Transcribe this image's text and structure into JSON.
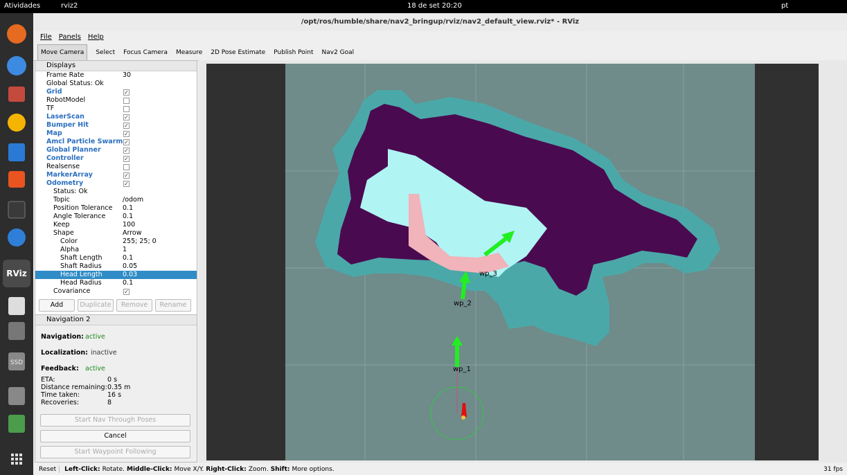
{
  "topbar": {
    "activities": "Atividades",
    "app": "rviz2",
    "clock": "18 de set 20:20",
    "lang": "pt"
  },
  "window": {
    "title": "/opt/ros/humble/share/nav2_bringup/rviz/nav2_default_view.rviz* - RViz"
  },
  "menu": [
    "File",
    "Panels",
    "Help"
  ],
  "toolbar": [
    "Move Camera",
    "Select",
    "Focus Camera",
    "Measure",
    "2D Pose Estimate",
    "Publish Point",
    "Nav2 Goal"
  ],
  "dock": {
    "rviz": "RViz",
    "ssd": "SSD"
  },
  "displays": {
    "title": "Displays",
    "rows": [
      {
        "name": "Frame Rate",
        "value": "30",
        "level": 1
      },
      {
        "name": "Global Status: Ok",
        "level": 1
      },
      {
        "name": "Grid",
        "check": true,
        "level": 1,
        "highlight": true
      },
      {
        "name": "RobotModel",
        "check": false,
        "level": 1
      },
      {
        "name": "TF",
        "check": false,
        "level": 1
      },
      {
        "name": "LaserScan",
        "check": true,
        "level": 1,
        "highlight": true
      },
      {
        "name": "Bumper Hit",
        "check": true,
        "level": 1,
        "highlight": true
      },
      {
        "name": "Map",
        "check": true,
        "level": 1,
        "highlight": true
      },
      {
        "name": "Amcl Particle Swarm",
        "check": true,
        "level": 1,
        "highlight": true
      },
      {
        "name": "Global Planner",
        "check": true,
        "level": 1,
        "highlight": true
      },
      {
        "name": "Controller",
        "check": true,
        "level": 1,
        "highlight": true
      },
      {
        "name": "Realsense",
        "check": false,
        "level": 1
      },
      {
        "name": "MarkerArray",
        "check": true,
        "level": 1,
        "highlight": true
      },
      {
        "name": "Odometry",
        "check": true,
        "level": 1,
        "highlight": true
      },
      {
        "name": "Status: Ok",
        "level": 2
      },
      {
        "name": "Topic",
        "value": "/odom",
        "level": 2
      },
      {
        "name": "Position Tolerance",
        "value": "0.1",
        "level": 2
      },
      {
        "name": "Angle Tolerance",
        "value": "0.1",
        "level": 2
      },
      {
        "name": "Keep",
        "value": "100",
        "level": 2
      },
      {
        "name": "Shape",
        "value": "Arrow",
        "level": 2
      },
      {
        "name": "Color",
        "value": "255; 25; 0",
        "level": 3
      },
      {
        "name": "Alpha",
        "value": "1",
        "level": 3
      },
      {
        "name": "Shaft Length",
        "value": "0.1",
        "level": 3
      },
      {
        "name": "Shaft Radius",
        "value": "0.05",
        "level": 3
      },
      {
        "name": "Head Length",
        "value": "0.03",
        "level": 3,
        "selected": true
      },
      {
        "name": "Head Radius",
        "value": "0.1",
        "level": 3
      },
      {
        "name": "Covariance",
        "check": true,
        "level": 2
      }
    ],
    "buttons": [
      "Add",
      "Duplicate",
      "Remove",
      "Rename"
    ]
  },
  "nav2": {
    "title": "Navigation 2",
    "status": [
      {
        "label": "Navigation:",
        "value": "active"
      },
      {
        "label": "Localization:",
        "value": "inactive"
      },
      {
        "label": "Feedback:",
        "value": "active"
      }
    ],
    "stats": [
      {
        "label": "ETA:",
        "value": "0 s"
      },
      {
        "label": "Distance remaining:",
        "value": "0.35 m"
      },
      {
        "label": "Time taken:",
        "value": "16 s"
      },
      {
        "label": "Recoveries:",
        "value": "8"
      }
    ],
    "buttons": [
      "Start Nav Through Poses",
      "Cancel",
      "Start Waypoint Following"
    ]
  },
  "viewport": {
    "waypoints": [
      "wp_1",
      "wp_2",
      "wp_3"
    ]
  },
  "statusbar": {
    "reset": "Reset",
    "hints": [
      {
        "key": "Left-Click:",
        "action": "Rotate."
      },
      {
        "key": "Middle-Click:",
        "action": "Move X/Y."
      },
      {
        "key": "Right-Click:",
        "action": "Zoom."
      },
      {
        "key": "Shift:",
        "action": "More options."
      }
    ],
    "fps": "31 fps"
  }
}
